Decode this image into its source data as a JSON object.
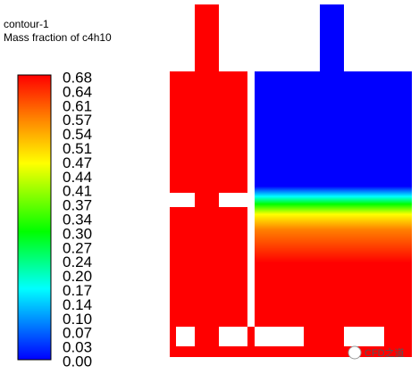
{
  "title": "contour-1",
  "subtitle": "Mass fraction of c4h10",
  "colorbar": {
    "labels": [
      "0.68",
      "0.64",
      "0.61",
      "0.57",
      "0.54",
      "0.51",
      "0.47",
      "0.44",
      "0.41",
      "0.37",
      "0.34",
      "0.30",
      "0.27",
      "0.24",
      "0.20",
      "0.17",
      "0.14",
      "0.10",
      "0.07",
      "0.03",
      "0.00"
    ]
  },
  "watermark": "CFD之道"
}
